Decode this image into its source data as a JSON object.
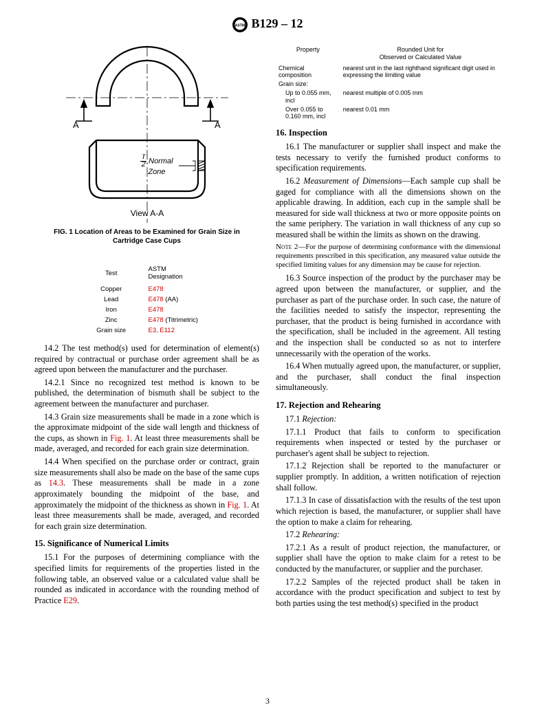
{
  "header": {
    "designation": "B129 – 12"
  },
  "figure": {
    "view_label": "View A-A",
    "A_left": "A",
    "A_right": "A",
    "normal_zone": "Normal\nZone",
    "T_num": "T",
    "T_den": "2",
    "caption": "FIG. 1  Location of Areas to be Examined for Grain Size in Cartridge Case Cups"
  },
  "tests_table": {
    "h1": "Test",
    "h2": "ASTM\nDesignation",
    "rows": [
      {
        "test": "Copper",
        "desig": "E478",
        "suffix": ""
      },
      {
        "test": "Lead",
        "desig": "E478",
        "suffix": " (AA)"
      },
      {
        "test": "Iron",
        "desig": "E478",
        "suffix": ""
      },
      {
        "test": "Zinc",
        "desig": "E478",
        "suffix": " (Titrimetric)"
      },
      {
        "test": "Grain size",
        "desig": "E3, E112",
        "suffix": ""
      }
    ]
  },
  "paras": {
    "p14_2": "14.2 The test method(s) used for determination of element(s) required by contractual or purchase order agreement shall be as agreed upon between the manufacturer and the purchaser.",
    "p14_2_1": "14.2.1 Since no recognized test method is known to be published, the determination of bismuth shall be subject to the agreement between the manufacturer and purchaser.",
    "p14_3_a": "14.3 Grain size measurements shall be made in a zone which is the approximate midpoint of the side wall length and thickness of the cups, as shown in ",
    "p14_3_link": "Fig. 1",
    "p14_3_b": ". At least three measurements shall be made, averaged, and recorded for each grain size determination.",
    "p14_4_a": "14.4 When specified on the purchase order or contract, grain size measurements shall also be made on the base of the same cups as ",
    "p14_4_link1": "14.3",
    "p14_4_b": ". These measurements shall be made in a zone approximately bounding the midpoint of the base, and approximately the midpoint of the thickness as shown in ",
    "p14_4_link2": "Fig. 1",
    "p14_4_c": ". At least three measurements shall be made, averaged, and recorded for each grain size determination.",
    "s15_head": "15. Significance of Numerical Limits",
    "p15_1_a": "15.1 For the purposes of determining compliance with the specified limits for requirements of the properties listed in the following table, an observed value or a calculated value shall be rounded as indicated in accordance with the rounding method of Practice ",
    "p15_1_link": "E29",
    "p15_1_b": "."
  },
  "rounding_table": {
    "h1": "Property",
    "h2": "Rounded Unit for\nObserved or Calculated Value",
    "rows": [
      {
        "c1": "Chemical composition",
        "c2": "nearest unit in the last righthand significant digit used in expressing the limiting value"
      },
      {
        "c1": "Grain size:",
        "c2": ""
      },
      {
        "c1": "Up to 0.055 mm, incl",
        "c2": "nearest multiple of 0.005 mm",
        "indent": true
      },
      {
        "c1": "Over 0.055 to 0.160 mm, incl",
        "c2": "nearest 0.01 mm",
        "indent": true
      }
    ]
  },
  "right": {
    "s16_head": "16. Inspection",
    "p16_1": "16.1 The manufacturer or supplier shall inspect and make the tests necessary to verify the furnished product conforms to specification requirements.",
    "p16_2_lead": "16.2 ",
    "p16_2_italic": "Measurement of Dimensions",
    "p16_2_body": "—Each sample cup shall be gaged for compliance with all the dimensions shown on the applicable drawing. In addition, each cup in the sample shall be measured for side wall thickness at two or more opposite points on the same periphery. The variation in wall thickness of any cup so measured shall be within the limits as shown on the drawing.",
    "note2_lbl": "Note 2—",
    "note2_body": "For the purpose of determining conformance with the dimensional requirements prescribed in this specification, any measured value outside the specified limiting values for any dimension may be cause for rejection.",
    "p16_3": "16.3 Source inspection of the product by the purchaser may be agreed upon between the manufacturer, or supplier, and the purchaser as part of the purchase order. In such case, the nature of the facilities needed to satisfy the inspector, representing the purchaser, that the product is being furnished in accordance with the specification, shall be included in the agreement. All testing and the inspection shall be conducted so as not to interfere unnecessarily with the operation of the works.",
    "p16_4": "16.4 When mutually agreed upon, the manufacturer, or supplier, and the purchaser, shall conduct the final inspection simultaneously.",
    "s17_head": "17. Rejection and Rehearing",
    "p17_1_lead": "17.1 ",
    "p17_1_italic": "Rejection:",
    "p17_1_1": "17.1.1 Product that fails to conform to specification requirements when inspected or tested by the purchaser or purchaser's agent shall be subject to rejection.",
    "p17_1_2": "17.1.2 Rejection shall be reported to the manufacturer or supplier promptly. In addition, a written notification of rejection shall follow.",
    "p17_1_3": "17.1.3 In case of dissatisfaction with the results of the test upon which rejection is based, the manufacturer, or supplier shall have the option to make a claim for rehearing.",
    "p17_2_lead": "17.2 ",
    "p17_2_italic": "Rehearing:",
    "p17_2_1": "17.2.1 As a result of product rejection, the manufacturer, or supplier shall have the option to make claim for a retest to be conducted by the manufacturer, or supplier and the purchaser.",
    "p17_2_2": "17.2.2 Samples of the rejected product shall be taken in accordance with the product specification and subject to test by both parties using the test method(s) specified in the product"
  },
  "pagenum": "3",
  "colors": {
    "link": "#cc0000",
    "text": "#000000"
  }
}
